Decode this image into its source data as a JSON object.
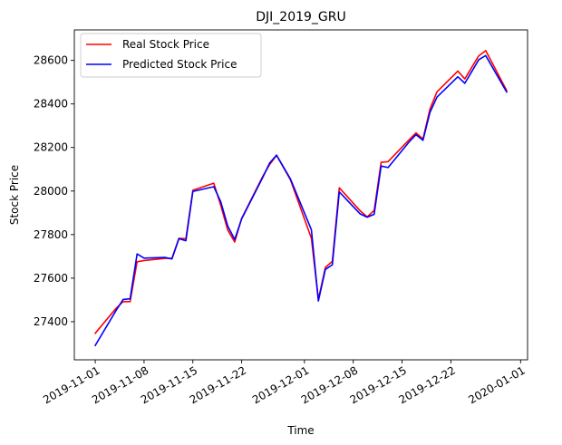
{
  "chart_data": {
    "type": "line",
    "title": "DJI_2019_GRU",
    "xlabel": "Time",
    "ylabel": "Stock Price",
    "x_tick_labels": [
      "2019-11-01",
      "2019-11-08",
      "2019-11-15",
      "2019-11-22",
      "2019-12-01",
      "2019-12-08",
      "2019-12-15",
      "2019-12-22",
      "2020-01-01"
    ],
    "y_ticks": [
      27400,
      27600,
      27800,
      28000,
      28200,
      28400,
      28600
    ],
    "xlim": [
      "2019-10-29",
      "2020-01-02"
    ],
    "ylim": [
      27225,
      28740
    ],
    "legend_position": "upper-left",
    "grid": false,
    "x": [
      "2019-11-01",
      "2019-11-04",
      "2019-11-05",
      "2019-11-06",
      "2019-11-07",
      "2019-11-08",
      "2019-11-11",
      "2019-11-12",
      "2019-11-13",
      "2019-11-14",
      "2019-11-15",
      "2019-11-18",
      "2019-11-19",
      "2019-11-20",
      "2019-11-21",
      "2019-11-22",
      "2019-11-25",
      "2019-11-26",
      "2019-11-27",
      "2019-11-29",
      "2019-12-02",
      "2019-12-03",
      "2019-12-04",
      "2019-12-05",
      "2019-12-06",
      "2019-12-09",
      "2019-12-10",
      "2019-12-11",
      "2019-12-12",
      "2019-12-13",
      "2019-12-16",
      "2019-12-17",
      "2019-12-18",
      "2019-12-19",
      "2019-12-20",
      "2019-12-23",
      "2019-12-24",
      "2019-12-26",
      "2019-12-27",
      "2019-12-30"
    ],
    "series": [
      {
        "name": "Real Stock Price",
        "color": "#ff0000",
        "values": [
          27347,
          27462,
          27492,
          27492,
          27675,
          27681,
          27691,
          27691,
          27783,
          27781,
          28004,
          28036,
          27934,
          27821,
          27766,
          27875,
          28066,
          28121,
          28164,
          28051,
          27783,
          27502,
          27649,
          27677,
          28015,
          27909,
          27881,
          27911,
          28132,
          28135,
          28235,
          28267,
          28239,
          28376,
          28455,
          28551,
          28515,
          28621,
          28645,
          28462
        ]
      },
      {
        "name": "Predicted Stock Price",
        "color": "#0000ff",
        "values": [
          27291,
          27452,
          27502,
          27505,
          27711,
          27692,
          27695,
          27688,
          27781,
          27772,
          27998,
          28020,
          27951,
          27839,
          27778,
          27872,
          28061,
          28128,
          28165,
          28055,
          27822,
          27495,
          27640,
          27661,
          27996,
          27895,
          27880,
          27893,
          28115,
          28108,
          28225,
          28259,
          28233,
          28361,
          28431,
          28525,
          28495,
          28603,
          28622,
          28455
        ]
      }
    ]
  }
}
